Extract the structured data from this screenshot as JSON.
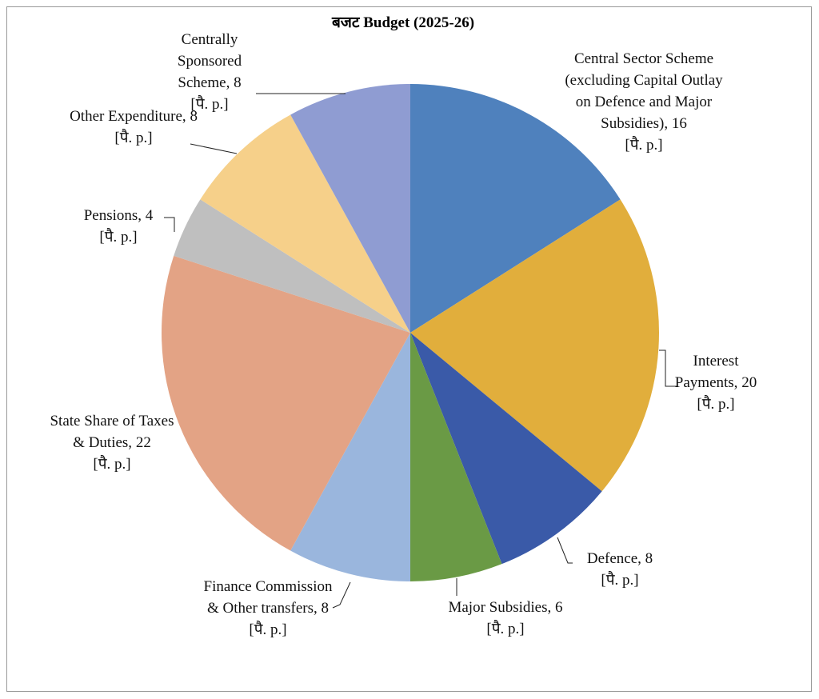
{
  "chart_data": {
    "type": "pie",
    "title": "बजट Budget  (2025-26)",
    "categories": [
      "Central Sector Scheme (excluding Capital Outlay on Defence and Major Subsidies),",
      "Interest Payments,",
      "Defence,",
      "Major Subsidies,",
      "Finance Commission & Other transfers,",
      "State Share of Taxes & Duties,",
      "Pensions,",
      "Other Expenditure,",
      "Centrally Sponsored Scheme,"
    ],
    "values": [
      16,
      20,
      8,
      6,
      8,
      22,
      4,
      8,
      8
    ],
    "colors": [
      "#4f81bd",
      "#e1ae3c",
      "#3a5aa8",
      "#6a9a45",
      "#9ab6dd",
      "#e3a385",
      "#bfbfbf",
      "#f6d08a",
      "#8f9cd2"
    ],
    "unit_label": "[पै. p.]"
  }
}
